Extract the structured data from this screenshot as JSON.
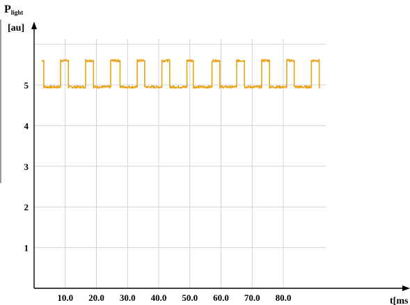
{
  "chart_data": {
    "type": "line",
    "ylabel_main": "P",
    "ylabel_sub": "light",
    "yunit": "[au]",
    "xlabel": "t[ms",
    "ylim": [
      0,
      6
    ],
    "xlim": [
      0,
      92
    ],
    "yticks": [
      1,
      2,
      3,
      4,
      5
    ],
    "xticks": [
      {
        "value": 10,
        "label": "10.0"
      },
      {
        "value": 20,
        "label": "20.0"
      },
      {
        "value": 30,
        "label": "30.0"
      },
      {
        "value": 40,
        "label": "40.0"
      },
      {
        "value": 50,
        "label": "50.0"
      },
      {
        "value": 60,
        "label": "60.0"
      },
      {
        "value": 70,
        "label": "70.0"
      },
      {
        "value": 80,
        "label": "80.0"
      }
    ],
    "grid": true,
    "series": [
      {
        "color": "#e8a317",
        "signal": "square-wave",
        "high_level": 5.6,
        "low_level": 4.95,
        "period": 8.0,
        "high_intervals": [
          [
            2.5,
            3.0
          ],
          [
            8.5,
            11.0
          ],
          [
            16.5,
            19.0
          ],
          [
            24.5,
            27.5
          ],
          [
            33.0,
            35.5
          ],
          [
            41.0,
            43.5
          ],
          [
            49.0,
            51.0
          ],
          [
            57.0,
            59.5
          ],
          [
            65.0,
            67.5
          ],
          [
            73.0,
            75.5
          ],
          [
            81.0,
            83.5
          ],
          [
            89.0,
            91.5
          ]
        ]
      }
    ]
  }
}
